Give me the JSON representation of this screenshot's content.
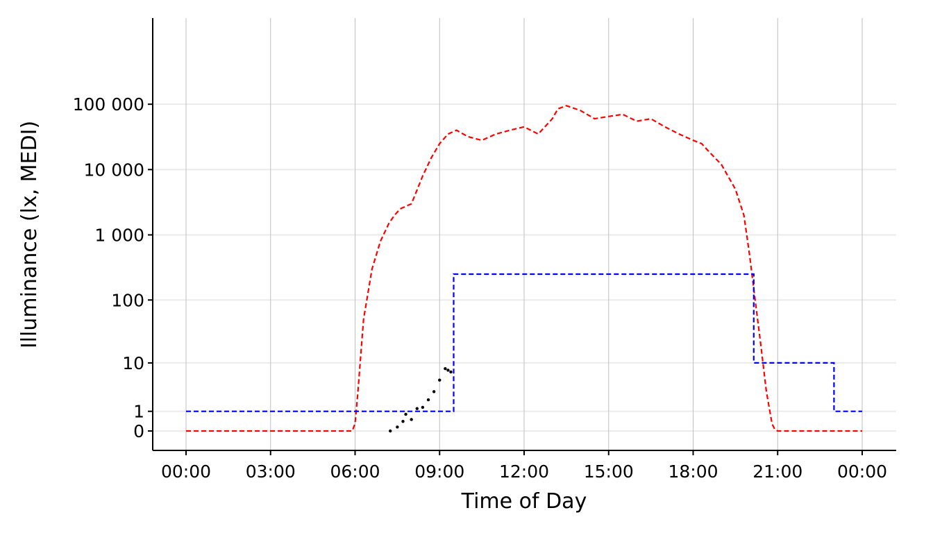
{
  "chart_data": {
    "type": "scatter",
    "title": "",
    "xlabel": "Time of Day",
    "ylabel": "Illuminance (lx, MEDI)",
    "x_unit": "hours",
    "xlim": [
      -0.6,
      24.6
    ],
    "x_ticks": [
      {
        "value": 0,
        "label": "00:00"
      },
      {
        "value": 3,
        "label": "03:00"
      },
      {
        "value": 6,
        "label": "06:00"
      },
      {
        "value": 9,
        "label": "09:00"
      },
      {
        "value": 12,
        "label": "12:00"
      },
      {
        "value": 15,
        "label": "15:00"
      },
      {
        "value": 18,
        "label": "18:00"
      },
      {
        "value": 21,
        "label": "21:00"
      },
      {
        "value": 24,
        "label": "00:00"
      }
    ],
    "y_scale": "symlog",
    "y_ticks": [
      {
        "value": 0,
        "label": "0"
      },
      {
        "value": 1,
        "label": "1"
      },
      {
        "value": 10,
        "label": "10"
      },
      {
        "value": 100,
        "label": "100"
      },
      {
        "value": 1000,
        "label": "1 000"
      },
      {
        "value": 10000,
        "label": "10 000"
      },
      {
        "value": 100000,
        "label": "100 000"
      }
    ],
    "grid": true,
    "legend": "none",
    "colors": {
      "points": "#000000",
      "daylight": "#ff0000",
      "recommendation": "#0000ff",
      "grid_major": "#bfbfbf",
      "grid_minor": "#ebebeb",
      "axis": "#000000"
    },
    "series": [
      {
        "kind": "dashed-line",
        "color": "#ff0000",
        "x": [
          0,
          5.9,
          6.0,
          6.1,
          6.3,
          6.6,
          6.9,
          7.2,
          7.4,
          7.6,
          8.0,
          8.4,
          8.7,
          9.0,
          9.3,
          9.6,
          10.0,
          10.5,
          11.0,
          11.5,
          12.0,
          12.5,
          13.0,
          13.2,
          13.5,
          14.0,
          14.5,
          15.0,
          15.5,
          16.0,
          16.5,
          17.0,
          17.5,
          18.0,
          18.3,
          18.6,
          19.0,
          19.5,
          19.8,
          20.0,
          20.2,
          20.4,
          20.6,
          20.8,
          20.9,
          21.0,
          22.0,
          23.0,
          24.0
        ],
        "y": [
          0,
          0,
          0.3,
          3,
          50,
          300,
          800,
          1500,
          2000,
          2500,
          3000,
          8000,
          15000,
          25000,
          35000,
          40000,
          32000,
          28000,
          35000,
          40000,
          45000,
          35000,
          60000,
          85000,
          95000,
          80000,
          60000,
          65000,
          70000,
          55000,
          60000,
          45000,
          35000,
          28000,
          25000,
          18000,
          12000,
          5000,
          2000,
          500,
          100,
          20,
          3,
          0.3,
          0.05,
          0,
          0,
          0,
          0
        ]
      },
      {
        "kind": "dashed-step",
        "color": "#0000ff",
        "x": [
          0,
          9.5,
          9.5,
          20.15,
          20.15,
          23.0,
          23.0,
          24.0
        ],
        "y": [
          1,
          1,
          250,
          250,
          10,
          10,
          1,
          1
        ]
      },
      {
        "kind": "points",
        "color": "#000000",
        "x": [
          7.25,
          7.5,
          7.7,
          7.8,
          8.0,
          8.2,
          8.4,
          8.6,
          8.8,
          9.0,
          9.2,
          9.3,
          9.4
        ],
        "y": [
          0,
          0.15,
          0.4,
          0.8,
          0.5,
          1.2,
          1.3,
          2,
          3,
          5,
          8,
          7.5,
          7
        ]
      }
    ]
  }
}
